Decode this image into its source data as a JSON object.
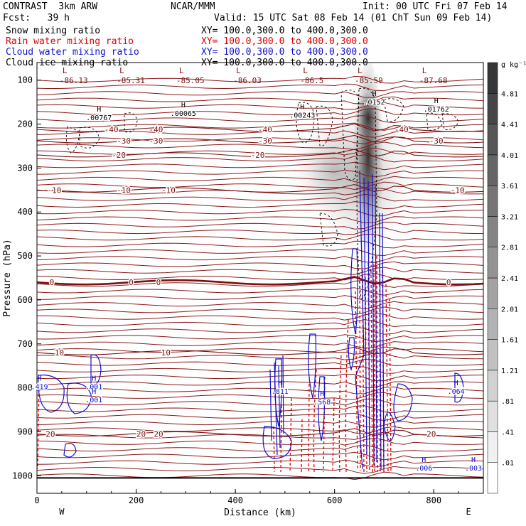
{
  "header": {
    "model": "CONTRAST  3km ARW",
    "org": "NCAR/MMM",
    "init": "Init: 00 UTC Fri 07 Feb 14",
    "fcst": "Fcst:   39 h",
    "valid": "Valid: 15 UTC Sat 08 Feb 14 (01 ChT Sun 09 Feb 14)",
    "fields": [
      {
        "name": "Snow mixing ratio",
        "xy": "XY= 100.0,300.0 to 400.0,300.0",
        "color": "#000000"
      },
      {
        "name": "Rain water mixing ratio",
        "xy": "XY= 100.0,300.0 to 400.0,300.0",
        "color": "#e00000"
      },
      {
        "name": "Cloud water mixing ratio",
        "xy": "XY= 100.0,300.0 to 400.0,300.0",
        "color": "#1010d0"
      },
      {
        "name": "Cloud ice mixing ratio",
        "xy": "XY= 100.0,300.0 to 400.0,300.0",
        "color": "#000000"
      }
    ]
  },
  "chart_data": {
    "type": "contour cross-section",
    "xlabel": "Distance (km)",
    "ylabel": "Pressure (hPa)",
    "xlim": [
      0,
      900
    ],
    "ylim": [
      1040,
      60
    ],
    "x_ticks": [
      0,
      200,
      400,
      600,
      800
    ],
    "y_ticks": [
      100,
      200,
      300,
      400,
      500,
      600,
      700,
      800,
      900,
      1000
    ],
    "endpoints": {
      "left": "W",
      "right": "E"
    },
    "colorbar": {
      "unit": "g kg⁻¹",
      "levels": [
        ".01",
        ".41",
        ".81",
        "1.21",
        "1.61",
        "2.01",
        "2.41",
        "2.81",
        "3.21",
        "3.61",
        "4.01",
        "4.41",
        "4.81"
      ]
    },
    "temperature_isotherms": [
      {
        "value": "-40",
        "p": 212,
        "labels": [
          {
            "x": 150,
            "text": "-40"
          },
          {
            "x": 240,
            "text": "-40"
          },
          {
            "x": 460,
            "text": "-40"
          },
          {
            "x": 735,
            "text": "-40"
          }
        ]
      },
      {
        "value": "-30",
        "p": 238,
        "labels": [
          {
            "x": 175,
            "text": "-30"
          },
          {
            "x": 240,
            "text": "-30"
          },
          {
            "x": 460,
            "text": "-30"
          },
          {
            "x": 805,
            "text": "-30"
          }
        ]
      },
      {
        "value": "-20",
        "p": 270,
        "labels": [
          {
            "x": 165,
            "text": "-20"
          },
          {
            "x": 445,
            "text": "-20"
          }
        ]
      },
      {
        "value": "-10",
        "p": 350,
        "labels": [
          {
            "x": 35,
            "text": "-10"
          },
          {
            "x": 175,
            "text": "-10"
          },
          {
            "x": 265,
            "text": "-10"
          },
          {
            "x": 848,
            "text": "-10"
          }
        ]
      },
      {
        "value": "0",
        "p": 560,
        "labels": [
          {
            "x": 30,
            "text": "0"
          },
          {
            "x": 190,
            "text": "0"
          },
          {
            "x": 245,
            "text": "0"
          },
          {
            "x": 830,
            "text": "0"
          }
        ]
      },
      {
        "value": "10",
        "p": 720,
        "labels": [
          {
            "x": 45,
            "text": "10"
          },
          {
            "x": 260,
            "text": "10"
          }
        ]
      },
      {
        "value": "20",
        "p": 905,
        "labels": [
          {
            "x": 27,
            "text": "20"
          },
          {
            "x": 210,
            "text": "20"
          },
          {
            "x": 245,
            "text": "20"
          },
          {
            "x": 795,
            "text": "20"
          }
        ]
      }
    ],
    "temperature_minima": [
      {
        "x": 60,
        "value": "-86.13"
      },
      {
        "x": 175,
        "value": "-85.31"
      },
      {
        "x": 295,
        "value": "-85.05"
      },
      {
        "x": 410,
        "value": "-86.03"
      },
      {
        "x": 545,
        "value": "-86.5"
      },
      {
        "x": 655,
        "value": "-85.59"
      },
      {
        "x": 785,
        "value": "-87.68"
      }
    ],
    "snow_maxima": [
      {
        "x": 125,
        "p": 188,
        "value": ".00767"
      },
      {
        "x": 295,
        "p": 178,
        "value": ".00065"
      },
      {
        "x": 535,
        "p": 182,
        "value": ".00243"
      },
      {
        "x": 680,
        "p": 152,
        "value": ".0152"
      },
      {
        "x": 805,
        "p": 168,
        "value": ".01762"
      }
    ],
    "cloud_water_maxima": [
      {
        "x": 5,
        "p": 800,
        "value": ".419"
      },
      {
        "x": 115,
        "p": 800,
        "value": ".001"
      },
      {
        "x": 115,
        "p": 830,
        "value": ".001"
      },
      {
        "x": 490,
        "p": 810,
        "value": ".811"
      },
      {
        "x": 575,
        "p": 835,
        "value": ".568"
      },
      {
        "x": 845,
        "p": 810,
        "value": ".064"
      },
      {
        "x": 780,
        "p": 985,
        "value": ".006"
      },
      {
        "x": 880,
        "p": 985,
        "value": ".003"
      }
    ]
  }
}
